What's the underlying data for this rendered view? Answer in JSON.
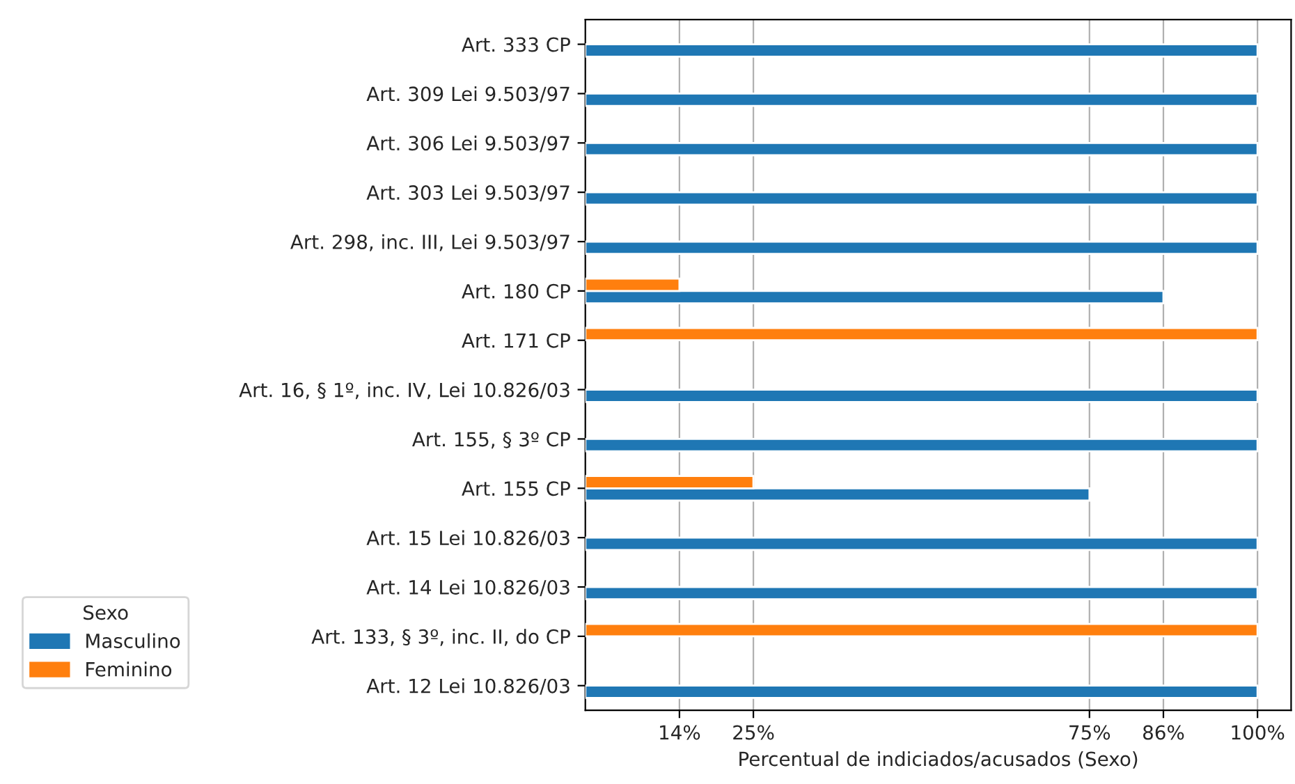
{
  "chart_data": {
    "type": "bar",
    "orientation": "horizontal",
    "xlabel": "Percentual de indiciados/acusados (Sexo)",
    "legend_title": "Sexo",
    "categories": [
      "Art. 333 CP",
      "Art. 309 Lei 9.503/97",
      "Art. 306 Lei 9.503/97",
      "Art. 303 Lei 9.503/97",
      "Art. 298, inc. III, Lei 9.503/97",
      "Art. 180 CP",
      "Art. 171 CP",
      "Art. 16, § 1º, inc. IV, Lei 10.826/03",
      "Art. 155, § 3º CP",
      "Art. 155 CP",
      "Art. 15 Lei 10.826/03",
      "Art. 14 Lei 10.826/03",
      "Art. 133, § 3º, inc. II, do CP",
      "Art. 12 Lei 10.826/03"
    ],
    "series": [
      {
        "name": "Masculino",
        "color": "#1f77b4",
        "values": [
          100,
          100,
          100,
          100,
          100,
          86,
          null,
          100,
          100,
          75,
          100,
          100,
          null,
          100
        ]
      },
      {
        "name": "Feminino",
        "color": "#ff7f0e",
        "values": [
          null,
          null,
          null,
          null,
          null,
          14,
          100,
          null,
          null,
          25,
          null,
          null,
          100,
          null
        ]
      }
    ],
    "xlim": [
      0,
      105
    ],
    "xticks": [
      {
        "value": 14,
        "label": "14%"
      },
      {
        "value": 25,
        "label": "25%"
      },
      {
        "value": 75,
        "label": "75%"
      },
      {
        "value": 86,
        "label": "86%"
      },
      {
        "value": 100,
        "label": "100%"
      }
    ],
    "grid": "x",
    "legend": "bottom left"
  }
}
